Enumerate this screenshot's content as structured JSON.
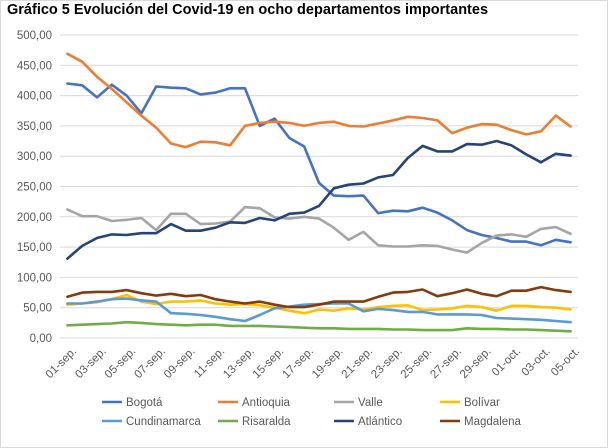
{
  "title": "Gráfico 5 Evolución del Covid-19 en ocho departamentos importantes",
  "chart_data": {
    "type": "line",
    "title": "Gráfico 5 Evolución del Covid-19 en ocho departamentos importantes",
    "xlabel": "",
    "ylabel": "",
    "ylim": [
      0,
      500
    ],
    "yticks": [
      "0,00",
      "50,00",
      "100,00",
      "150,00",
      "200,00",
      "250,00",
      "300,00",
      "350,00",
      "400,00",
      "450,00",
      "500,00"
    ],
    "grid": true,
    "legend_position": "bottom",
    "x": [
      "01-sep.",
      "02-sep.",
      "03-sep.",
      "04-sep.",
      "05-sep.",
      "06-sep.",
      "07-sep.",
      "08-sep.",
      "09-sep.",
      "10-sep.",
      "11-sep.",
      "12-sep.",
      "13-sep.",
      "14-sep.",
      "15-sep.",
      "16-sep.",
      "17-sep.",
      "18-sep.",
      "19-sep.",
      "20-sep.",
      "21-sep.",
      "22-sep.",
      "23-sep.",
      "24-sep.",
      "25-sep.",
      "26-sep.",
      "27-sep.",
      "28-sep.",
      "29-sep.",
      "30-sep.",
      "01-oct.",
      "02-oct.",
      "03-oct.",
      "04-oct.",
      "05-oct."
    ],
    "xtick_labels": [
      "01-sep.",
      "03-sep.",
      "05-sep.",
      "07-sep.",
      "09-sep.",
      "11-sep.",
      "13-sep.",
      "15-sep.",
      "17-sep.",
      "19-sep.",
      "21-sep.",
      "23-sep.",
      "25-sep.",
      "27-sep.",
      "29-sep.",
      "01-oct.",
      "03-oct.",
      "05-oct."
    ],
    "series": [
      {
        "name": "Bogotá",
        "color": "#4472c4",
        "values": [
          420,
          417,
          397,
          418,
          400,
          371,
          415,
          413,
          412,
          402,
          405,
          412,
          412,
          350,
          362,
          330,
          316,
          256,
          235,
          234,
          235,
          206,
          210,
          209,
          215,
          207,
          194,
          178,
          170,
          165,
          159,
          159,
          153,
          162,
          158
        ]
      },
      {
        "name": "Antioquia",
        "color": "#ed7d31",
        "values": [
          469,
          456,
          431,
          411,
          389,
          367,
          347,
          321,
          315,
          324,
          323,
          318,
          350,
          355,
          357,
          355,
          350,
          355,
          357,
          350,
          349,
          354,
          359,
          365,
          363,
          359,
          338,
          347,
          353,
          352,
          343,
          336,
          341,
          367,
          349
        ]
      },
      {
        "name": "Valle",
        "color": "#a5a5a5",
        "values": [
          212,
          201,
          201,
          193,
          195,
          198,
          178,
          205,
          205,
          188,
          189,
          192,
          216,
          214,
          199,
          197,
          200,
          197,
          182,
          162,
          175,
          153,
          151,
          151,
          153,
          152,
          146,
          141,
          157,
          169,
          171,
          167,
          180,
          183,
          172
        ]
      },
      {
        "name": "Bolívar",
        "color": "#ffc000",
        "values": [
          55,
          57,
          59,
          64,
          71,
          60,
          56,
          60,
          60,
          62,
          57,
          55,
          56,
          54,
          50,
          45,
          41,
          47,
          45,
          49,
          47,
          51,
          53,
          54,
          46,
          47,
          49,
          53,
          51,
          45,
          53,
          53,
          51,
          50,
          47
        ]
      },
      {
        "name": "Cundinamarca",
        "color": "#5b9bd5",
        "values": [
          57,
          57,
          60,
          64,
          65,
          62,
          60,
          41,
          40,
          38,
          35,
          31,
          28,
          38,
          49,
          52,
          55,
          56,
          57,
          57,
          44,
          48,
          46,
          43,
          43,
          39,
          39,
          39,
          38,
          33,
          32,
          31,
          30,
          28,
          26
        ]
      },
      {
        "name": "Risaralda",
        "color": "#70ad47",
        "values": [
          21,
          22,
          23,
          24,
          26,
          25,
          23,
          22,
          21,
          22,
          22,
          20,
          20,
          20,
          19,
          18,
          17,
          16,
          16,
          15,
          15,
          15,
          14,
          14,
          13,
          13,
          13,
          16,
          15,
          15,
          14,
          14,
          13,
          12,
          11
        ]
      },
      {
        "name": "Atlántico",
        "color": "#264478",
        "values": [
          131,
          152,
          165,
          171,
          170,
          173,
          173,
          188,
          177,
          177,
          182,
          191,
          190,
          198,
          194,
          205,
          207,
          218,
          247,
          253,
          255,
          265,
          269,
          297,
          317,
          308,
          308,
          320,
          319,
          325,
          318,
          303,
          290,
          304,
          301
        ]
      },
      {
        "name": "Magdalena",
        "color": "#843c0c",
        "values": [
          68,
          75,
          76,
          76,
          79,
          74,
          70,
          73,
          69,
          71,
          64,
          60,
          57,
          60,
          55,
          51,
          51,
          55,
          60,
          60,
          60,
          68,
          75,
          76,
          80,
          69,
          74,
          80,
          73,
          69,
          78,
          78,
          84,
          79,
          76
        ]
      }
    ]
  }
}
